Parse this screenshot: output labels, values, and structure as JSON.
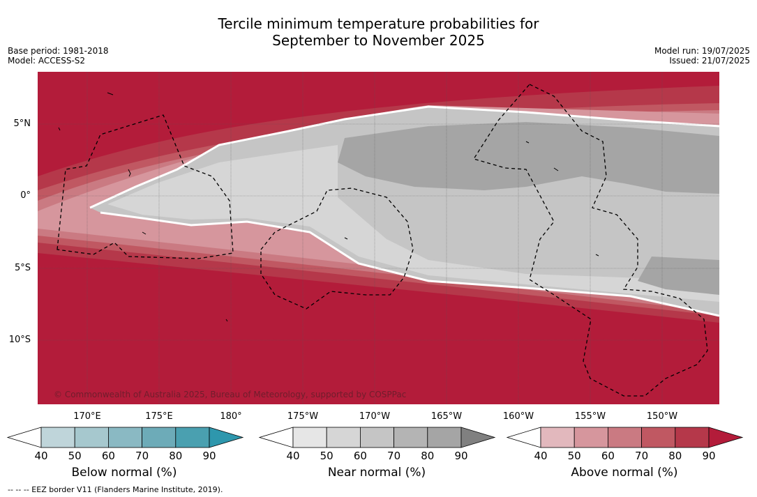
{
  "title_line1": "Tercile minimum temperature probabilities for",
  "title_line2": "September to November 2025",
  "meta_left": [
    "Base period: 1981-2018",
    "Model: ACCESS-S2"
  ],
  "meta_right": [
    "Model run: 19/07/2025",
    "Issued: 21/07/2025"
  ],
  "credit": "© Commonwealth of Australia 2025, Bureau of Meteorology, supported by COSPPac",
  "lat_ticks": [
    "5°N",
    "0°",
    "5°S",
    "10°S"
  ],
  "lon_ticks": [
    "170°E",
    "175°E",
    "180°",
    "175°W",
    "170°W",
    "165°W",
    "160°W",
    "155°W",
    "150°W"
  ],
  "colorbars": [
    {
      "label": "Below normal (%)",
      "ticks": [
        "40",
        "50",
        "60",
        "70",
        "80",
        "90"
      ],
      "colors": [
        "#ffffff",
        "#bfd5da",
        "#a6c8ce",
        "#8ab9c3",
        "#6dabb8",
        "#4aa0b0",
        "#2e97ad"
      ]
    },
    {
      "label": "Near normal (%)",
      "ticks": [
        "40",
        "50",
        "60",
        "70",
        "80",
        "90"
      ],
      "colors": [
        "#ffffff",
        "#e6e6e6",
        "#d6d6d6",
        "#c5c5c5",
        "#b4b4b4",
        "#a5a5a5",
        "#808080"
      ]
    },
    {
      "label": "Above normal (%)",
      "ticks": [
        "40",
        "50",
        "60",
        "70",
        "80",
        "90"
      ],
      "colors": [
        "#ffffff",
        "#e2b8bd",
        "#d6969d",
        "#ca7a82",
        "#c05862",
        "#b5384a",
        "#b31c3a"
      ]
    }
  ],
  "footnote": "--  --  -- EEZ border V11 (Flanders Marine Institute, 2019)."
}
